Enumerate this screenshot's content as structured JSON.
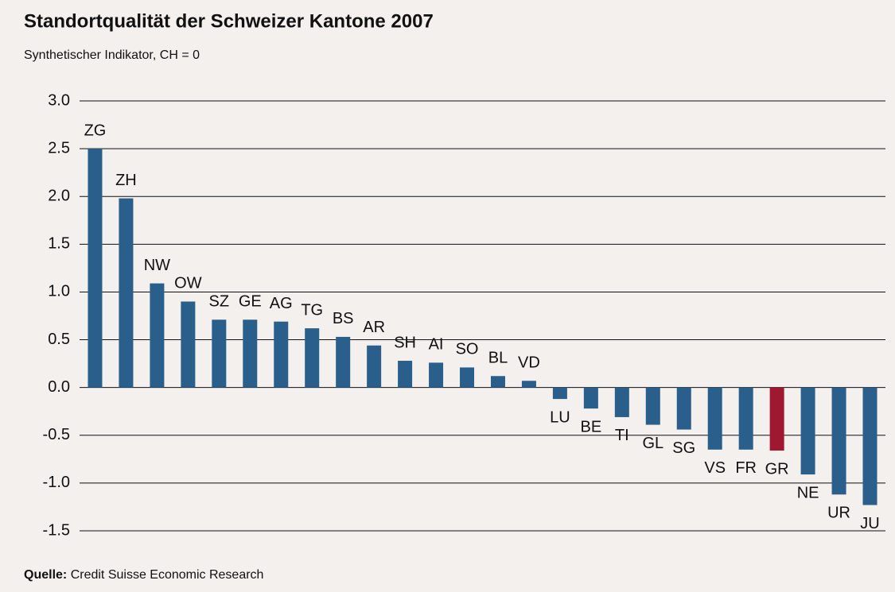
{
  "chart_data": {
    "type": "bar",
    "title": "Standortqualität der Schweizer Kantone 2007",
    "subtitle": "Synthetischer Indikator, CH = 0",
    "source_label": "Quelle:",
    "source": "Credit Suisse Economic Research",
    "categories": [
      "ZG",
      "ZH",
      "NW",
      "OW",
      "SZ",
      "GE",
      "AG",
      "TG",
      "BS",
      "AR",
      "SH",
      "AI",
      "SO",
      "BL",
      "VD",
      "LU",
      "BE",
      "TI",
      "GL",
      "SG",
      "VS",
      "FR",
      "GR",
      "NE",
      "UR",
      "JU"
    ],
    "values": [
      2.5,
      1.98,
      1.09,
      0.9,
      0.71,
      0.71,
      0.69,
      0.62,
      0.53,
      0.44,
      0.28,
      0.26,
      0.21,
      0.12,
      0.07,
      -0.12,
      -0.22,
      -0.31,
      -0.39,
      -0.44,
      -0.65,
      -0.65,
      -0.66,
      -0.91,
      -1.12,
      -1.23
    ],
    "colors": [
      "#2a5f8c",
      "#2a5f8c",
      "#2a5f8c",
      "#2a5f8c",
      "#2a5f8c",
      "#2a5f8c",
      "#2a5f8c",
      "#2a5f8c",
      "#2a5f8c",
      "#2a5f8c",
      "#2a5f8c",
      "#2a5f8c",
      "#2a5f8c",
      "#2a5f8c",
      "#2a5f8c",
      "#2a5f8c",
      "#2a5f8c",
      "#2a5f8c",
      "#2a5f8c",
      "#2a5f8c",
      "#2a5f8c",
      "#2a5f8c",
      "#a0182f",
      "#2a5f8c",
      "#2a5f8c",
      "#2a5f8c"
    ],
    "ylim": [
      -1.5,
      3.0
    ],
    "yticks": [
      {
        "value": 3.0,
        "label": "3.0"
      },
      2.5,
      {
        "value": 2.0,
        "label": "2.0"
      },
      1.5,
      {
        "value": 1.0,
        "label": "1.0"
      },
      0.5,
      {
        "value": 0.0,
        "label": "0.0"
      },
      -0.5,
      {
        "value": -1.0,
        "label": "-1.0"
      },
      -1.5
    ],
    "grid": true
  }
}
